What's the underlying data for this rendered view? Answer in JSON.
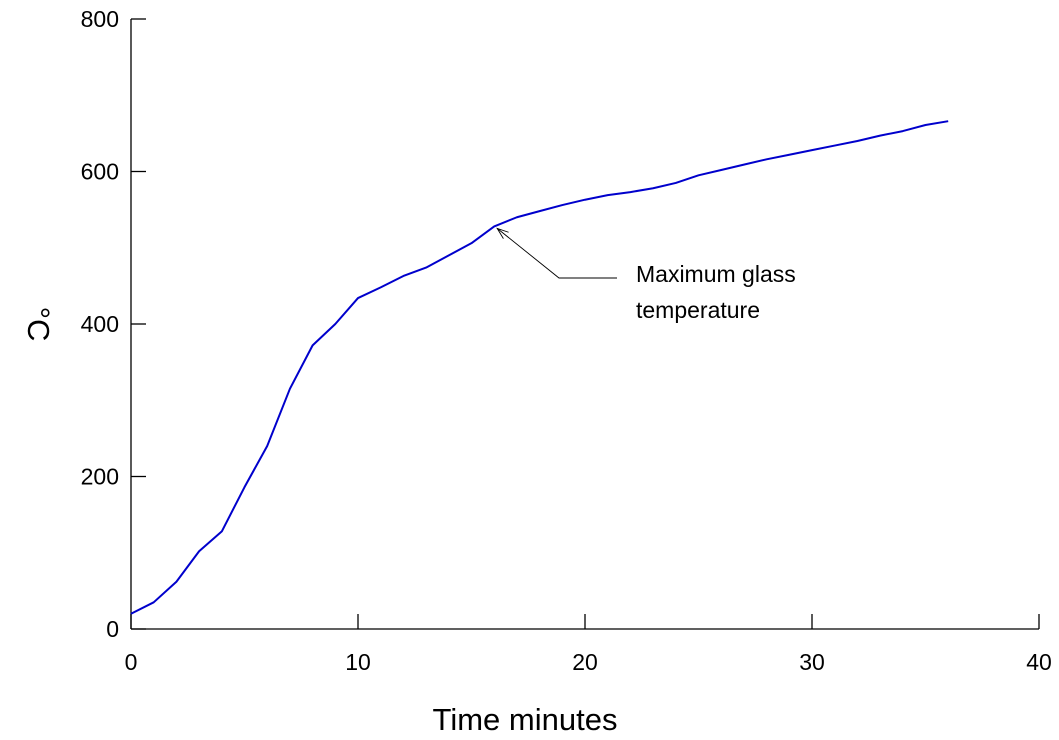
{
  "chart_data": {
    "type": "line",
    "title": "",
    "xlabel": "Time minutes",
    "ylabel": "°C",
    "xlim": [
      0,
      40
    ],
    "ylim": [
      0,
      800
    ],
    "xticks": [
      0,
      10,
      20,
      30,
      40
    ],
    "yticks": [
      0,
      200,
      400,
      600,
      800
    ],
    "grid": false,
    "legend": "none",
    "series": [
      {
        "color": "#0000cc",
        "x": [
          0,
          1,
          2,
          3,
          4,
          5,
          6,
          7,
          8,
          9,
          10,
          11,
          12,
          13,
          14,
          15,
          16,
          17,
          18,
          19,
          20,
          21,
          22,
          23,
          24,
          25,
          26,
          27,
          28,
          29,
          30,
          31,
          32,
          33,
          34,
          35,
          36
        ],
        "y": [
          20,
          35,
          62,
          102,
          128,
          186,
          240,
          315,
          372,
          400,
          434,
          448,
          463,
          474,
          490,
          506,
          528,
          540,
          548,
          556,
          563,
          569,
          573,
          578,
          585,
          595,
          602,
          609,
          616,
          622,
          628,
          634,
          640,
          647,
          653,
          661,
          666
        ]
      }
    ],
    "annotations": [
      {
        "text_lines": [
          "Maximum glass",
          "temperature"
        ],
        "point": [
          16,
          528
        ]
      }
    ]
  }
}
